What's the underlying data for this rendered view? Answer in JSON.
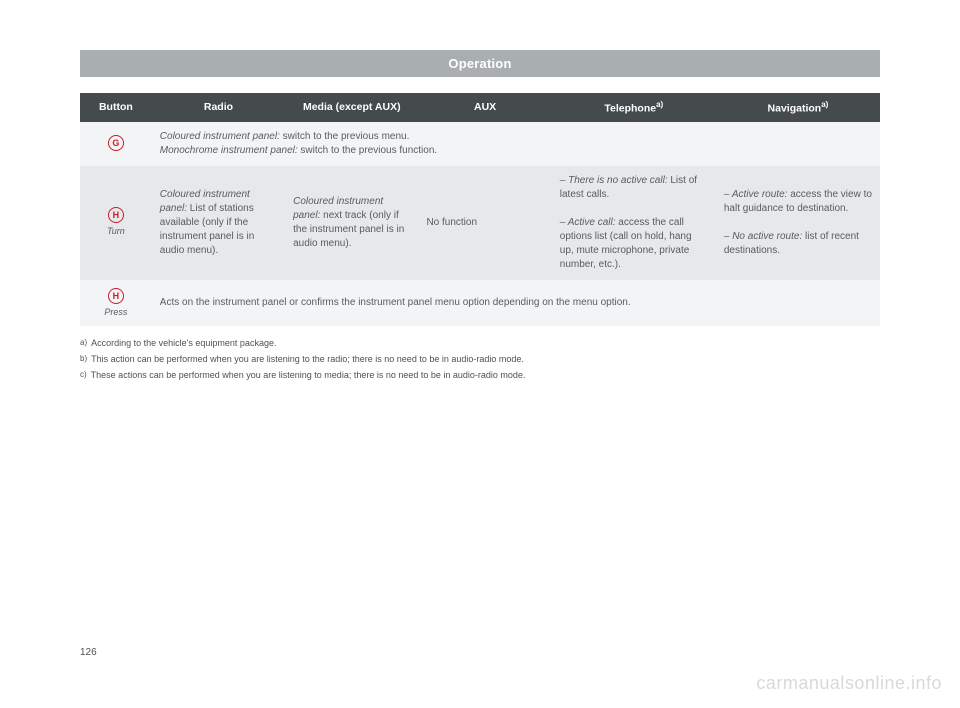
{
  "title": "Operation",
  "page_number": "126",
  "watermark": "carmanualsonline.info",
  "columns": {
    "button": "Button",
    "radio": "Radio",
    "media": "Media (except AUX)",
    "aux": "AUX",
    "telephone": "Telephone",
    "navigation": "Navigation",
    "ref_a": "a)"
  },
  "rowG": {
    "icon": "G",
    "coloured_label": "Coloured instrument panel:",
    "coloured_text": " switch to the previous menu.",
    "mono_label": "Monochrome instrument panel:",
    "mono_text": " switch to the previous function."
  },
  "rowH_turn": {
    "icon": "H",
    "action": "Turn",
    "radio_label": "Coloured instrument panel:",
    "radio_text": " List of stations available (only if the instrument panel is in audio menu).",
    "media_label": "Coloured instrument panel:",
    "media_text": " next track (only if the instrument panel is in audio menu).",
    "aux": "No function",
    "tel_noactive_label": "– There is no active call:",
    "tel_noactive_text": " List of latest calls.",
    "tel_active_label": "– Active call:",
    "tel_active_text": " access the call options list (call on hold, hang up, mute microphone, private number, etc.).",
    "nav_active_label": "– Active route:",
    "nav_active_text": " access the view to halt guidance to destination.",
    "nav_noactive_label": "– No active route:",
    "nav_noactive_text": " list of recent destinations."
  },
  "rowH_press": {
    "icon": "H",
    "action": "Press",
    "text": "Acts on the instrument panel or confirms the instrument panel menu option depending on the menu option."
  },
  "footnotes": {
    "a_mark": "a)",
    "a_text": "According to the vehicle's equipment package.",
    "b_mark": "b)",
    "b_text": "This action can be performed when you are listening to the radio; there is no need to be in audio-radio mode.",
    "c_mark": "c)",
    "c_text": "These actions can be performed when you are listening to media; there is no need to be in audio-radio mode."
  }
}
